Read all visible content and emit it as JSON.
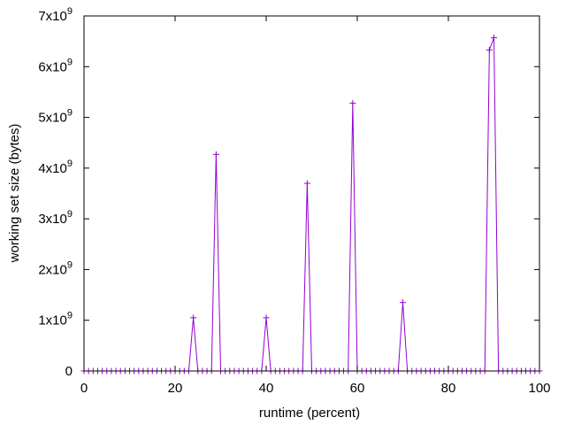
{
  "chart_data": {
    "type": "line",
    "xlabel": "runtime (percent)",
    "ylabel": "working set size (bytes)",
    "xlim": [
      0,
      100
    ],
    "ylim": [
      0,
      7000000000
    ],
    "x_ticks": [
      {
        "value": 0,
        "label": "0"
      },
      {
        "value": 20,
        "label": "20"
      },
      {
        "value": 40,
        "label": "40"
      },
      {
        "value": 60,
        "label": "60"
      },
      {
        "value": 80,
        "label": "80"
      },
      {
        "value": 100,
        "label": "100"
      }
    ],
    "y_ticks": [
      {
        "value": 0,
        "mantissa": "0",
        "exp": ""
      },
      {
        "value": 1000000000,
        "mantissa": "1x10",
        "exp": "9"
      },
      {
        "value": 2000000000,
        "mantissa": "2x10",
        "exp": "9"
      },
      {
        "value": 3000000000,
        "mantissa": "3x10",
        "exp": "9"
      },
      {
        "value": 4000000000,
        "mantissa": "4x10",
        "exp": "9"
      },
      {
        "value": 5000000000,
        "mantissa": "5x10",
        "exp": "9"
      },
      {
        "value": 6000000000,
        "mantissa": "6x10",
        "exp": "9"
      },
      {
        "value": 7000000000,
        "mantissa": "7x10",
        "exp": "9"
      }
    ],
    "series": [
      {
        "color": "#9400d3",
        "marker": "plus",
        "x": [
          0,
          1,
          2,
          3,
          4,
          5,
          6,
          7,
          8,
          9,
          10,
          11,
          12,
          13,
          14,
          15,
          16,
          17,
          18,
          19,
          20,
          21,
          22,
          23,
          24,
          25,
          26,
          27,
          28,
          29,
          30,
          31,
          32,
          33,
          34,
          35,
          36,
          37,
          38,
          39,
          40,
          41,
          42,
          43,
          44,
          45,
          46,
          47,
          48,
          49,
          50,
          51,
          52,
          53,
          54,
          55,
          56,
          57,
          58,
          59,
          60,
          61,
          62,
          63,
          64,
          65,
          66,
          67,
          68,
          69,
          70,
          71,
          72,
          73,
          74,
          75,
          76,
          77,
          78,
          79,
          80,
          81,
          82,
          83,
          84,
          85,
          86,
          87,
          88,
          89,
          90,
          91,
          92,
          93,
          94,
          95,
          96,
          97,
          98,
          99,
          100
        ],
        "y": [
          0,
          0,
          0,
          0,
          0,
          0,
          0,
          0,
          0,
          0,
          0,
          0,
          0,
          0,
          0,
          0,
          0,
          0,
          0,
          0,
          0,
          0,
          0,
          0,
          1050000000,
          0,
          0,
          0,
          0,
          4270000000,
          0,
          0,
          0,
          0,
          0,
          0,
          0,
          0,
          0,
          0,
          1050000000,
          0,
          0,
          0,
          0,
          0,
          0,
          0,
          0,
          3700000000,
          0,
          0,
          0,
          0,
          0,
          0,
          0,
          0,
          0,
          5280000000,
          0,
          0,
          0,
          0,
          0,
          0,
          0,
          0,
          0,
          0,
          1350000000,
          0,
          0,
          0,
          0,
          0,
          0,
          0,
          0,
          0,
          0,
          0,
          0,
          0,
          0,
          0,
          0,
          0,
          0,
          6330000000,
          6570000000,
          0,
          0,
          0,
          0,
          0,
          0,
          0,
          0,
          0,
          0
        ]
      }
    ],
    "grid": false,
    "legend": "none"
  }
}
